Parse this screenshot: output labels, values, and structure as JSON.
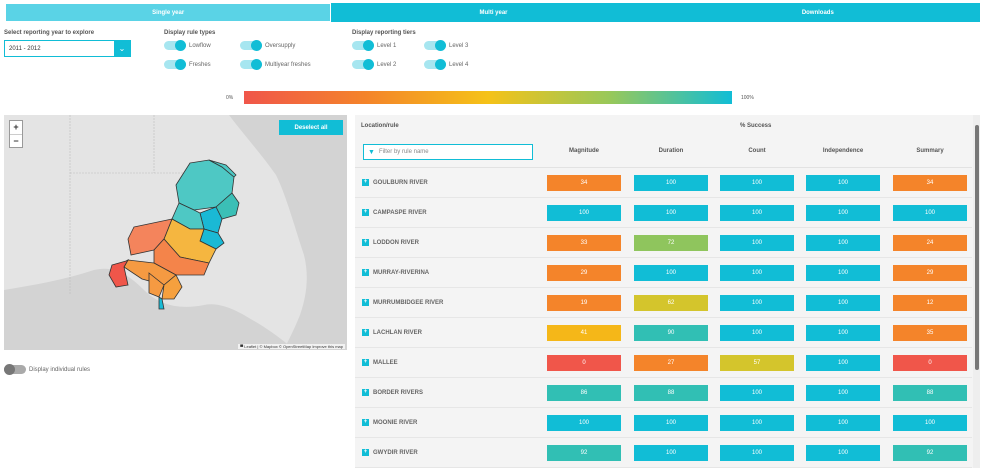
{
  "tabs": [
    {
      "label": "Single year",
      "active": true
    },
    {
      "label": "Multi year",
      "active": false
    },
    {
      "label": "Downloads",
      "active": false
    }
  ],
  "year_select": {
    "label": "Select reporting year to explore",
    "value": "2011 - 2012"
  },
  "rule_types": {
    "title": "Display rule types",
    "toggles": [
      {
        "label": "Lowflow",
        "on": true
      },
      {
        "label": "Oversupply",
        "on": true
      },
      {
        "label": "Freshes",
        "on": true
      },
      {
        "label": "Multiyear freshes",
        "on": true
      }
    ]
  },
  "tiers": {
    "title": "Display reporting tiers",
    "toggles": [
      {
        "label": "Level 1",
        "on": true
      },
      {
        "label": "Level 3",
        "on": true
      },
      {
        "label": "Level 2",
        "on": true
      },
      {
        "label": "Level 4",
        "on": true
      }
    ]
  },
  "scale": {
    "min_label": "0%",
    "max_label": "100%"
  },
  "map": {
    "zoom_in": "+",
    "zoom_out": "−",
    "deselect_label": "Deselect all",
    "attribution": "▀ Leaflet | © Mapbox © OpenStreetMap Improve this map"
  },
  "individual_rules": {
    "label": "Display individual rules",
    "on": false
  },
  "table": {
    "location_header": "Location/rule",
    "success_header": "% Success",
    "filter_placeholder": "Filter by rule name",
    "columns": [
      "Magnitude",
      "Duration",
      "Count",
      "Independence",
      "Summary"
    ],
    "rows": [
      {
        "name": "GOULBURN RIVER",
        "values": [
          34,
          100,
          100,
          100,
          34
        ]
      },
      {
        "name": "CAMPASPE RIVER",
        "values": [
          100,
          100,
          100,
          100,
          100
        ]
      },
      {
        "name": "LODDON RIVER",
        "values": [
          33,
          72,
          100,
          100,
          24
        ]
      },
      {
        "name": "MURRAY-RIVERINA",
        "values": [
          29,
          100,
          100,
          100,
          29
        ]
      },
      {
        "name": "MURRUMBIDGEE RIVER",
        "values": [
          19,
          62,
          100,
          100,
          12
        ]
      },
      {
        "name": "LACHLAN RIVER",
        "values": [
          41,
          90,
          100,
          100,
          35
        ]
      },
      {
        "name": "MALLEE",
        "values": [
          0,
          27,
          57,
          100,
          0
        ]
      },
      {
        "name": "BORDER RIVERS",
        "values": [
          86,
          88,
          100,
          100,
          88
        ]
      },
      {
        "name": "MOONIE RIVER",
        "values": [
          100,
          100,
          100,
          100,
          100
        ]
      },
      {
        "name": "GWYDIR RIVER",
        "values": [
          92,
          100,
          100,
          100,
          92
        ]
      }
    ]
  },
  "colors": {
    "accent": "#11bdd6",
    "scale_0": "#f0564a",
    "scale_25": "#f4842a",
    "scale_40": "#f5b718",
    "scale_60": "#d4c52c",
    "scale_75": "#8fc55d",
    "scale_90": "#31bfb4",
    "scale_100": "#11bdd6"
  }
}
